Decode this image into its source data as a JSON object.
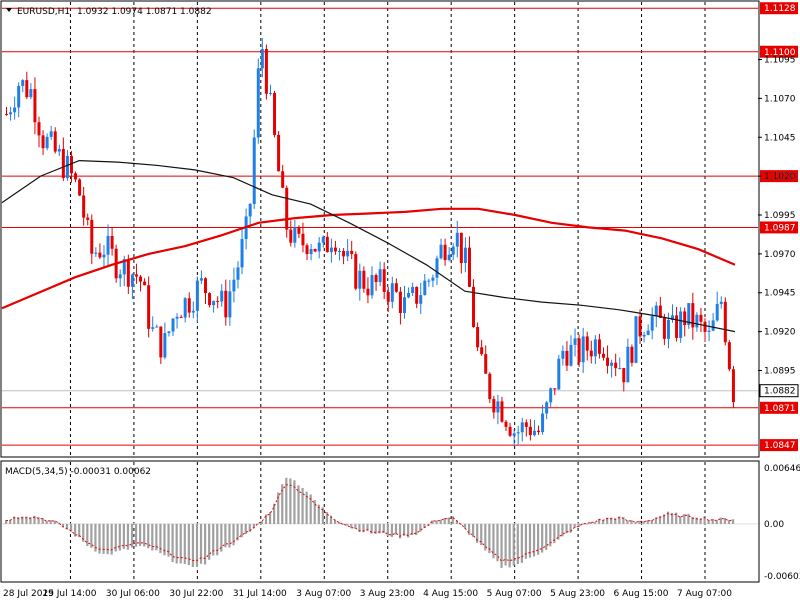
{
  "header": {
    "symbol": "EURUSD,H1",
    "ohlc": "1.0932 1.0974 1.0871 1.0882"
  },
  "macd": {
    "label": "MACD(5,34,5) -0.00031 0.00062",
    "ticks": [
      "0.00646",
      "0.00",
      "-0.00603"
    ]
  },
  "colors": {
    "bull": "#1e7fe6",
    "bear": "#e60000",
    "ma_slow": "#e60000",
    "ma_fast": "#111111",
    "level": "#e60000",
    "grid": "#000000",
    "macd_hist": "#a0a0a0",
    "macd_signal": "#e60000"
  },
  "chart_data": {
    "type": "candlestick",
    "title": "EURUSD,H1",
    "ylim": [
      1.084,
      1.1132
    ],
    "y_ticks": [
      "1.1095",
      "1.1070",
      "1.1045",
      "1.1020",
      "1.0995",
      "1.0970",
      "1.0945",
      "1.0920",
      "1.0895"
    ],
    "x_ticks": [
      "28 Jul 2015",
      "29 Jul 14:00",
      "30 Jul 06:00",
      "30 Jul 22:00",
      "31 Jul 14:00",
      "3 Aug 07:00",
      "3 Aug 23:00",
      "4 Aug 15:00",
      "5 Aug 07:00",
      "5 Aug 23:00",
      "6 Aug 15:00",
      "7 Aug 07:00"
    ],
    "levels": [
      {
        "label": "1.1128",
        "value": 1.1128
      },
      {
        "label": "1.1100",
        "value": 1.11
      },
      {
        "label": "1.1020",
        "value": 1.102
      },
      {
        "label": "1.0987",
        "value": 1.0987
      },
      {
        "label": "1.0871",
        "value": 1.0871
      },
      {
        "label": "1.0847",
        "value": 1.0847
      }
    ],
    "current_price": {
      "label": "1.0882",
      "value": 1.0882
    },
    "ma_slow": [
      1.0935,
      1.0945,
      1.0955,
      1.0963,
      1.097,
      1.0975,
      1.0982,
      1.099,
      1.0993,
      1.0995,
      1.0996,
      1.0997,
      1.0999,
      1.0999,
      1.0995,
      1.099,
      1.0987,
      1.0985,
      1.098,
      1.0973,
      1.0963
    ],
    "ma_fast": [
      1.1003,
      1.102,
      1.103,
      1.1029,
      1.1027,
      1.1024,
      1.1019,
      1.1008,
      1.1002,
      1.099,
      1.0977,
      1.0963,
      1.0946,
      1.0942,
      1.0939,
      1.0937,
      1.0934,
      1.093,
      1.0925,
      1.092
    ],
    "candles_close_path": [
      1.106,
      1.108,
      1.1075,
      1.1045,
      1.1035,
      1.1025,
      1.101,
      1.097,
      1.0975,
      1.0965,
      1.096,
      1.0955,
      1.092,
      1.091,
      1.0935,
      1.094,
      1.095,
      1.0945,
      1.0935,
      1.096,
      1.099,
      1.111,
      1.105,
      1.099,
      1.0975,
      1.098,
      1.097,
      1.0985,
      1.0965,
      1.0955,
      1.095,
      1.095,
      1.0945,
      1.0935,
      1.0945,
      1.0955,
      1.0975,
      1.0985,
      1.096,
      1.09,
      1.088,
      1.087,
      1.0855,
      1.086,
      1.0855,
      1.088,
      1.091,
      1.0905,
      1.091,
      1.0915,
      1.0905,
      1.0895,
      1.092,
      1.093,
      1.0925,
      1.092,
      1.093,
      1.0925,
      1.0915,
      1.094,
      1.0882
    ],
    "macd_hist_path": [
      0.0005,
      0.001,
      0.0008,
      0.0002,
      -0.001,
      -0.0025,
      -0.0035,
      -0.003,
      -0.0025,
      -0.003,
      -0.004,
      -0.0048,
      -0.0045,
      -0.003,
      -0.002,
      -0.0005,
      0.0015,
      0.0055,
      0.004,
      0.002,
      0.0005,
      -0.0005,
      -0.001,
      -0.0012,
      -0.0015,
      -0.001,
      0.0005,
      0.0008,
      -0.001,
      -0.003,
      -0.0048,
      -0.0045,
      -0.0035,
      -0.0025,
      -0.001,
      0.0,
      0.0005,
      0.0008,
      0.0002,
      0.0005,
      0.0012,
      0.001,
      0.0008,
      0.0005,
      0.0006
    ]
  }
}
